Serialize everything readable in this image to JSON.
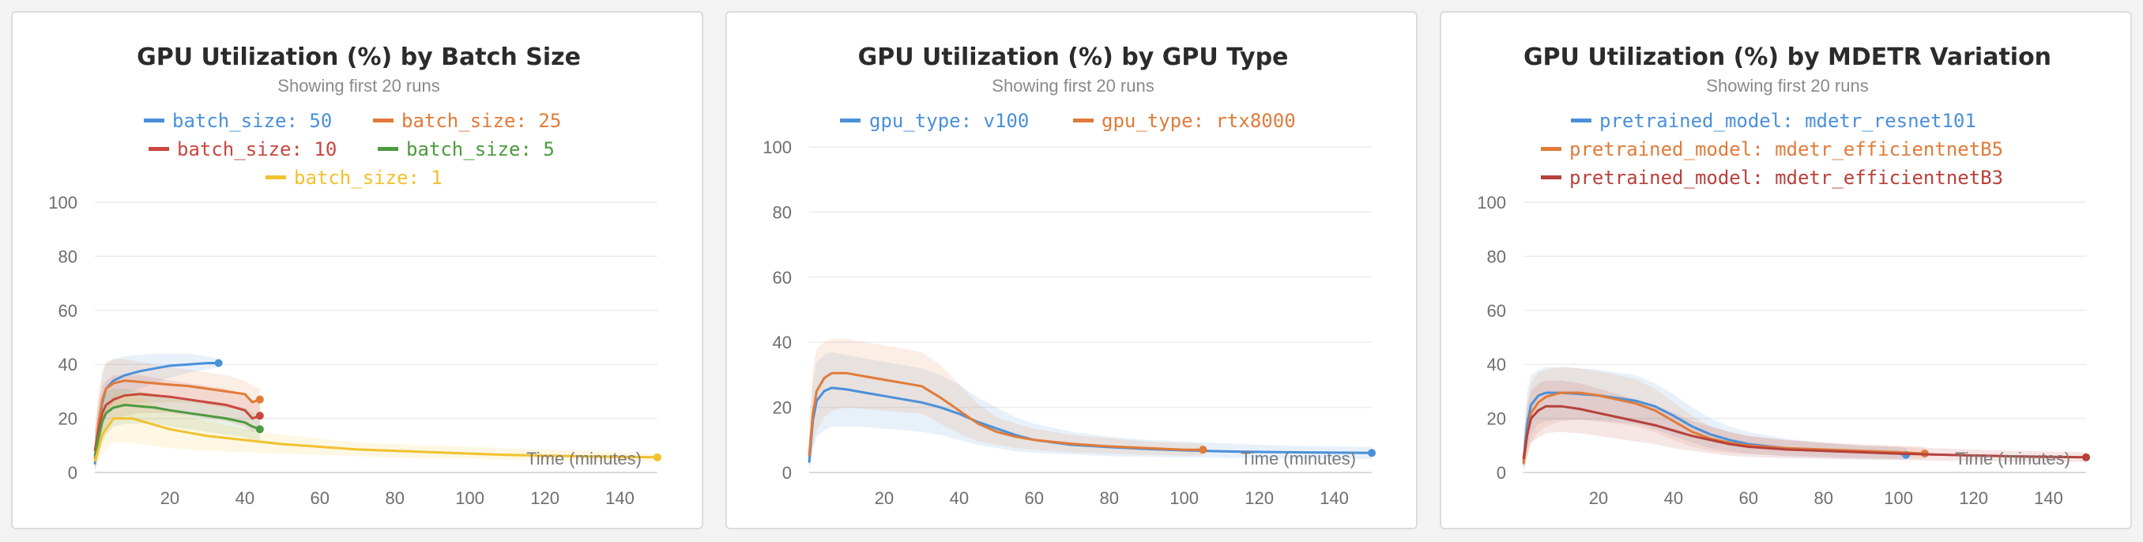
{
  "chart_data": [
    {
      "type": "line",
      "title": "GPU Utilization (%) by Batch Size",
      "subtitle": "Showing first 20 runs",
      "xlabel": "Time (minutes)",
      "ylabel": "",
      "xlim": [
        0,
        150
      ],
      "ylim": [
        0,
        100
      ],
      "xticks": [
        20,
        40,
        60,
        80,
        100,
        120,
        140
      ],
      "yticks": [
        0,
        20,
        40,
        60,
        80,
        100
      ],
      "grid": true,
      "legend": "top",
      "series": [
        {
          "name": "batch_size: 50",
          "color": "#4a90d9",
          "x": [
            0,
            1,
            2,
            3,
            5,
            8,
            12,
            16,
            20,
            25,
            30,
            33
          ],
          "y": [
            3,
            15,
            26,
            31,
            34,
            36,
            37.5,
            38.5,
            39.5,
            40,
            40.5,
            40.5
          ],
          "band_upper": [
            10,
            25,
            36,
            40,
            42,
            43,
            43.5,
            44,
            44,
            44,
            43,
            42
          ],
          "band_lower": [
            1,
            8,
            17,
            22,
            26,
            29,
            31,
            33,
            35,
            37,
            38,
            39
          ]
        },
        {
          "name": "batch_size: 25",
          "color": "#e07b39",
          "x": [
            0,
            1,
            2,
            3,
            5,
            8,
            12,
            16,
            20,
            25,
            30,
            35,
            40,
            42,
            44
          ],
          "y": [
            5,
            18,
            27,
            31,
            33,
            34,
            33.5,
            33,
            32.5,
            32,
            31,
            30,
            29,
            26,
            27
          ],
          "band_upper": [
            15,
            30,
            38,
            41,
            42,
            42,
            41,
            40,
            39,
            38,
            37,
            36,
            34,
            32,
            31
          ],
          "band_lower": [
            1,
            8,
            16,
            21,
            24,
            25,
            26,
            26,
            26,
            26,
            25,
            24,
            23,
            21,
            22
          ]
        },
        {
          "name": "batch_size: 10",
          "color": "#c9473f",
          "x": [
            0,
            1,
            2,
            3,
            5,
            8,
            12,
            16,
            20,
            25,
            30,
            35,
            40,
            42,
            44
          ],
          "y": [
            8,
            16,
            22,
            25,
            27,
            28.5,
            29,
            28.5,
            28,
            27,
            26,
            25,
            23,
            20,
            21
          ],
          "band_upper": [
            16,
            26,
            32,
            34,
            36,
            36,
            36,
            35,
            34,
            33,
            32,
            31,
            29,
            27,
            27
          ],
          "band_lower": [
            2,
            8,
            13,
            16,
            19,
            21,
            22,
            22,
            22,
            21,
            20,
            19,
            17,
            15,
            16
          ]
        },
        {
          "name": "batch_size: 5",
          "color": "#4c9a3f",
          "x": [
            0,
            1,
            2,
            3,
            5,
            8,
            12,
            16,
            20,
            25,
            30,
            35,
            40,
            42,
            44
          ],
          "y": [
            6,
            13,
            19,
            22,
            24,
            25,
            24.5,
            24,
            23,
            22,
            21,
            20,
            18.5,
            17,
            16
          ],
          "band_upper": [
            13,
            22,
            28,
            30,
            31,
            31,
            30,
            29,
            28,
            27,
            26,
            25,
            24,
            22,
            21
          ],
          "band_lower": [
            1,
            6,
            11,
            14,
            17,
            18,
            18,
            18,
            17,
            16,
            15,
            14,
            13,
            12,
            11
          ]
        },
        {
          "name": "batch_size: 1",
          "color": "#f2c12e",
          "x": [
            0,
            2,
            5,
            10,
            15,
            20,
            30,
            40,
            50,
            60,
            70,
            80,
            90,
            100,
            110,
            120,
            130,
            140,
            150
          ],
          "y": [
            4,
            14,
            20,
            20,
            18,
            16,
            13.5,
            12,
            10.5,
            9.5,
            8.5,
            8,
            7.5,
            7,
            6.5,
            6.2,
            6,
            5.8,
            5.6
          ],
          "band_upper": [
            10,
            22,
            29,
            29,
            26,
            23,
            19,
            16,
            14,
            12.5,
            11,
            10.5,
            10,
            9.5,
            9,
            8.5,
            8,
            7.5,
            7
          ],
          "band_lower": [
            1,
            7,
            11,
            11,
            10,
            9,
            8,
            7.5,
            7,
            6.5,
            6,
            5.5,
            5.2,
            5,
            4.7,
            4.5,
            4.3,
            4.2,
            4.1
          ]
        }
      ]
    },
    {
      "type": "line",
      "title": "GPU Utilization (%) by GPU Type",
      "subtitle": "Showing first 20 runs",
      "xlabel": "Time (minutes)",
      "ylabel": "",
      "xlim": [
        0,
        150
      ],
      "ylim": [
        0,
        100
      ],
      "xticks": [
        20,
        40,
        60,
        80,
        100,
        120,
        140
      ],
      "yticks": [
        0,
        20,
        40,
        60,
        80,
        100
      ],
      "grid": true,
      "legend": "top",
      "series": [
        {
          "name": "gpu_type: v100",
          "color": "#4a90d9",
          "x": [
            0,
            1,
            2,
            4,
            6,
            10,
            15,
            20,
            25,
            30,
            35,
            40,
            45,
            50,
            55,
            60,
            70,
            80,
            90,
            100,
            110,
            120,
            130,
            140,
            150
          ],
          "y": [
            3,
            16,
            22,
            25,
            26,
            25.5,
            24.5,
            23.5,
            22.5,
            21.5,
            20,
            18,
            15.5,
            13.5,
            11.5,
            10,
            8.5,
            7.8,
            7.2,
            6.8,
            6.5,
            6.3,
            6.2,
            6.1,
            6
          ],
          "band_upper": [
            10,
            28,
            34,
            36,
            37,
            36,
            35,
            34,
            33,
            32,
            30,
            27,
            23,
            20,
            17,
            15,
            12.5,
            11,
            10,
            9.5,
            9,
            8.5,
            8.2,
            8,
            7.8
          ],
          "band_lower": [
            1,
            7,
            11,
            13,
            14,
            14,
            14,
            13.5,
            13,
            12.5,
            11.5,
            10,
            8.5,
            7.5,
            6.5,
            6,
            5.5,
            5,
            4.8,
            4.6,
            4.5,
            4.4,
            4.3,
            4.2,
            4.1
          ]
        },
        {
          "name": "gpu_type: rtx8000",
          "color": "#e07b39",
          "x": [
            0,
            1,
            2,
            4,
            6,
            10,
            15,
            20,
            25,
            30,
            35,
            40,
            45,
            50,
            55,
            60,
            70,
            80,
            90,
            100,
            105
          ],
          "y": [
            5,
            18,
            25,
            29,
            30.5,
            30.5,
            29.5,
            28.5,
            27.5,
            26.5,
            23,
            19,
            15,
            12.5,
            11,
            10,
            8.8,
            8,
            7.5,
            7,
            7
          ],
          "band_upper": [
            15,
            32,
            38,
            40,
            41,
            41,
            40,
            39,
            38,
            37,
            33,
            27,
            21,
            17,
            15,
            13.5,
            11.5,
            10.5,
            9.5,
            9,
            8.8
          ],
          "band_lower": [
            1,
            8,
            13,
            17,
            19,
            20,
            19.5,
            19,
            18.5,
            18,
            15,
            12,
            9.5,
            8.5,
            7.5,
            7,
            6.2,
            5.8,
            5.5,
            5.2,
            5.2
          ]
        }
      ]
    },
    {
      "type": "line",
      "title": "GPU Utilization (%) by MDETR Variation",
      "subtitle": "Showing first 20 runs",
      "xlabel": "Time (minutes)",
      "ylabel": "",
      "xlim": [
        0,
        150
      ],
      "ylim": [
        0,
        100
      ],
      "xticks": [
        20,
        40,
        60,
        80,
        100,
        120,
        140
      ],
      "yticks": [
        0,
        20,
        40,
        60,
        80,
        100
      ],
      "grid": true,
      "legend": "top",
      "series": [
        {
          "name": "pretrained_model: mdetr_resnet101",
          "color": "#4a90d9",
          "x": [
            0,
            1,
            2,
            4,
            6,
            10,
            15,
            20,
            25,
            30,
            35,
            40,
            45,
            50,
            55,
            60,
            70,
            80,
            90,
            100,
            102
          ],
          "y": [
            4,
            18,
            25,
            28.5,
            29.5,
            29.5,
            29,
            28.5,
            27.5,
            26.5,
            24.5,
            21,
            17,
            14,
            12,
            10.5,
            9,
            8,
            7.5,
            7,
            6.5
          ],
          "band_upper": [
            12,
            30,
            36,
            38,
            39,
            39,
            38.5,
            38,
            37,
            36,
            33,
            29,
            24,
            20,
            17,
            15,
            12.5,
            11,
            10,
            9.5,
            9
          ],
          "band_lower": [
            1,
            8,
            14,
            18,
            19,
            19.5,
            19.5,
            19,
            18.5,
            18,
            16,
            13.5,
            11,
            9,
            7.8,
            7,
            6,
            5.5,
            5,
            4.8,
            4.6
          ]
        },
        {
          "name": "pretrained_model: mdetr_efficientnetB5",
          "color": "#e07b39",
          "x": [
            0,
            1,
            2,
            4,
            6,
            10,
            15,
            20,
            25,
            30,
            35,
            40,
            45,
            50,
            55,
            60,
            70,
            80,
            90,
            100,
            107
          ],
          "y": [
            3,
            14,
            22,
            26,
            28,
            29.5,
            29.5,
            28.5,
            27,
            25.5,
            23,
            19,
            15,
            12.5,
            11,
            10,
            9,
            8.5,
            8,
            7.5,
            7
          ],
          "band_upper": [
            10,
            26,
            33,
            37,
            38,
            39,
            38.5,
            37.5,
            36,
            34.5,
            31,
            26,
            21,
            17,
            15,
            13.5,
            12,
            11,
            10.5,
            10,
            9.5
          ],
          "band_lower": [
            1,
            6,
            11,
            15,
            17,
            19,
            19.5,
            19,
            18,
            17,
            15,
            12,
            9.5,
            8,
            7.2,
            6.8,
            6.2,
            5.8,
            5.5,
            5.2,
            5
          ]
        },
        {
          "name": "pretrained_model: mdetr_efficientnetB3",
          "color": "#b7413b",
          "x": [
            0,
            1,
            2,
            4,
            6,
            10,
            15,
            20,
            25,
            30,
            35,
            40,
            45,
            50,
            55,
            60,
            70,
            80,
            90,
            100,
            110,
            120,
            130,
            140,
            150
          ],
          "y": [
            5,
            14,
            20,
            23,
            24.5,
            24.5,
            23.5,
            22,
            20.5,
            19,
            17.5,
            15.5,
            13.5,
            12,
            10.5,
            9.5,
            8.5,
            8,
            7.5,
            7,
            6.6,
            6.3,
            6,
            5.8,
            5.6
          ],
          "band_upper": [
            12,
            24,
            30,
            33,
            34,
            34,
            33,
            31,
            29,
            27,
            25,
            22,
            19,
            17,
            15,
            13.5,
            12,
            11,
            10,
            9.5,
            9,
            8.5,
            8,
            7.8,
            7.5
          ],
          "band_lower": [
            1,
            6,
            11,
            13,
            14.5,
            15,
            14.5,
            13.5,
            12.5,
            11.5,
            10.5,
            9,
            8,
            7,
            6.2,
            5.8,
            5.3,
            5,
            4.8,
            4.6,
            4.4,
            4.2,
            4.1,
            4,
            3.9
          ]
        }
      ]
    }
  ]
}
